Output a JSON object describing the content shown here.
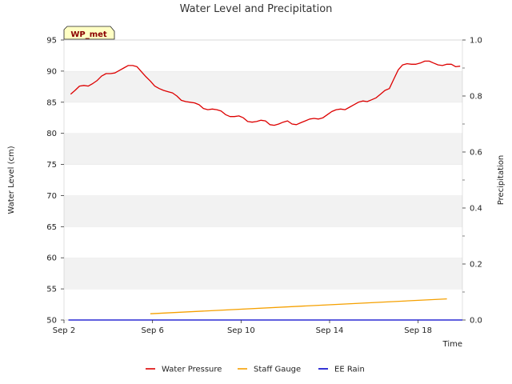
{
  "chart_data": {
    "type": "line",
    "title": "Water Level and Precipitation",
    "badge": "WP_met",
    "xlabel": "Time",
    "ylabel": "Water Level (cm)",
    "y2label": "Precipitation",
    "xlim": [
      2.0,
      20.0
    ],
    "ylim": [
      50,
      95
    ],
    "y2lim": [
      0.0,
      1.0
    ],
    "x_ticks": [
      2,
      6,
      10,
      14,
      18
    ],
    "x_tick_labels": [
      "Sep 2",
      "Sep 6",
      "Sep 10",
      "Sep 14",
      "Sep 18"
    ],
    "y_ticks": [
      50,
      55,
      60,
      65,
      70,
      75,
      80,
      85,
      90,
      95
    ],
    "y2_ticks": [
      0.0,
      0.2,
      0.4,
      0.6,
      0.8,
      1.0
    ],
    "y2_tick_labels": [
      "0.0",
      "0.2",
      "0.4",
      "0.6",
      "0.8",
      "1.0"
    ],
    "grid": "horizontal bands",
    "legend_position": "bottom",
    "series": [
      {
        "name": "Water Pressure",
        "color": "#dd0000",
        "axis": "left",
        "x": [
          2.3,
          2.5,
          2.7,
          2.9,
          3.1,
          3.3,
          3.5,
          3.7,
          3.9,
          4.1,
          4.3,
          4.5,
          4.7,
          4.9,
          5.1,
          5.3,
          5.5,
          5.7,
          5.9,
          6.1,
          6.3,
          6.5,
          6.7,
          6.9,
          7.1,
          7.3,
          7.5,
          7.7,
          7.9,
          8.1,
          8.3,
          8.5,
          8.7,
          8.9,
          9.1,
          9.3,
          9.5,
          9.7,
          9.9,
          10.1,
          10.3,
          10.5,
          10.7,
          10.9,
          11.1,
          11.3,
          11.5,
          11.7,
          11.9,
          12.1,
          12.3,
          12.5,
          12.7,
          12.9,
          13.1,
          13.3,
          13.5,
          13.7,
          13.9,
          14.1,
          14.3,
          14.5,
          14.7,
          14.9,
          15.1,
          15.3,
          15.5,
          15.7,
          15.9,
          16.1,
          16.3,
          16.5,
          16.7,
          16.9,
          17.1,
          17.3,
          17.5,
          17.7,
          17.9,
          18.1,
          18.3,
          18.5,
          18.7,
          18.9,
          19.1,
          19.3,
          19.5,
          19.7,
          19.9
        ],
        "values": [
          86.3,
          86.9,
          87.6,
          87.7,
          87.6,
          88.0,
          88.5,
          89.2,
          89.6,
          89.6,
          89.7,
          90.1,
          90.5,
          90.9,
          90.9,
          90.7,
          89.9,
          89.1,
          88.4,
          87.6,
          87.2,
          86.9,
          86.7,
          86.5,
          86.0,
          85.3,
          85.1,
          85.0,
          84.9,
          84.6,
          84.0,
          83.8,
          83.9,
          83.8,
          83.6,
          83.0,
          82.7,
          82.7,
          82.8,
          82.5,
          81.9,
          81.8,
          81.9,
          82.1,
          82.0,
          81.4,
          81.3,
          81.5,
          81.8,
          82.0,
          81.5,
          81.4,
          81.7,
          82.0,
          82.3,
          82.4,
          82.3,
          82.5,
          83.0,
          83.5,
          83.8,
          83.9,
          83.8,
          84.2,
          84.6,
          85.0,
          85.2,
          85.1,
          85.4,
          85.7,
          86.3,
          86.9,
          87.2,
          88.7,
          90.2,
          91.0,
          91.2,
          91.1,
          91.1,
          91.3,
          91.6,
          91.6,
          91.3,
          91.0,
          90.9,
          91.1,
          91.1,
          90.7,
          90.8
        ]
      },
      {
        "name": "Staff Gauge",
        "color": "#f5a000",
        "axis": "left",
        "x": [
          5.9,
          19.3
        ],
        "values": [
          51.0,
          53.4
        ]
      },
      {
        "name": "EE Rain",
        "color": "#0000cc",
        "axis": "right",
        "x": [
          2.2,
          20.0
        ],
        "values": [
          0.0,
          0.0
        ]
      }
    ]
  }
}
